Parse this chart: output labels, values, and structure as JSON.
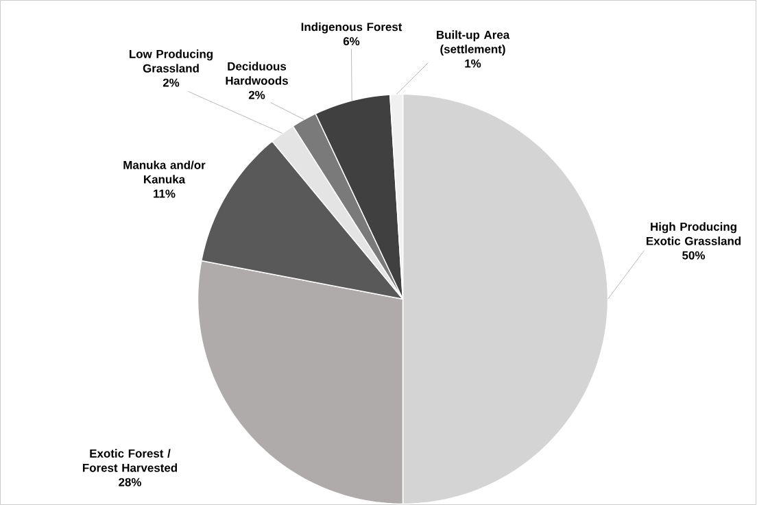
{
  "chart_data": {
    "type": "pie",
    "categories": [
      "High Producing Exotic Grassland",
      "Exotic Forest / Forest Harvested",
      "Manuka and/or Kanuka",
      "Low Producing Grassland",
      "Deciduous Hardwoods",
      "Indigenous Forest",
      "Built-up Area (settlement)"
    ],
    "values": [
      50,
      28,
      11,
      2,
      2,
      6,
      1
    ],
    "value_labels": [
      "50%",
      "28%",
      "11%",
      "2%",
      "2%",
      "6%",
      "1%"
    ],
    "colors": [
      "#d4d4d4",
      "#afabab",
      "#595959",
      "#e4e4e4",
      "#7a7a7a",
      "#404040",
      "#f0f0f0"
    ]
  }
}
